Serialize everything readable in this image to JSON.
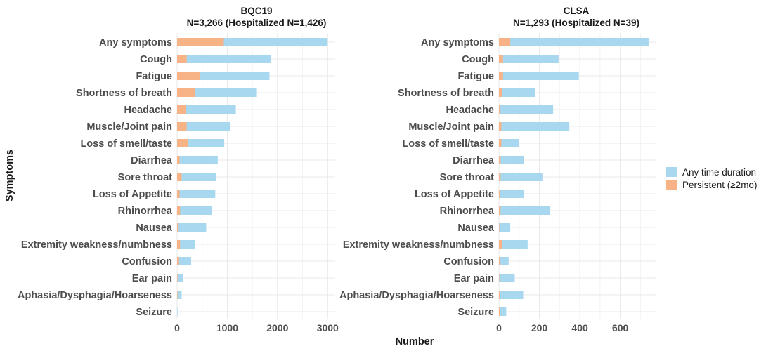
{
  "chart_data": {
    "type": "bar",
    "orientation": "horizontal",
    "stacking": "overlay",
    "ylabel": "Symptoms",
    "xlabel": "Number",
    "categories": [
      "Any symptoms",
      "Cough",
      "Fatigue",
      "Shortness of breath",
      "Headache",
      "Muscle/Joint pain",
      "Loss of smell/taste",
      "Diarrhea",
      "Sore throat",
      "Loss of Appetite",
      "Rhinorrhea",
      "Nausea",
      "Extremity weakness/numbness",
      "Confusion",
      "Ear pain",
      "Aphasia/Dysphagia/Hoarseness",
      "Seizure"
    ],
    "legend": {
      "position": "right",
      "entries": [
        {
          "name": "Any time duration",
          "color": "#a8d8ef"
        },
        {
          "name": "Persistent (≥2mo)",
          "color": "#f7b385"
        }
      ]
    },
    "panels": [
      {
        "title_line1": "BQC19",
        "title_line2": "N=3,266 (Hospitalized N=1,426)",
        "xlim": [
          0,
          3150
        ],
        "xticks": [
          0,
          1000,
          2000,
          3000
        ],
        "series": [
          {
            "name": "Any time duration",
            "values": [
              3000,
              1870,
              1840,
              1590,
              1170,
              1060,
              940,
              810,
              780,
              760,
              690,
              580,
              360,
              280,
              120,
              90,
              10
            ]
          },
          {
            "name": "Persistent (≥2mo)",
            "values": [
              930,
              190,
              460,
              350,
              180,
              190,
              220,
              50,
              90,
              50,
              60,
              30,
              60,
              40,
              10,
              10,
              0
            ]
          }
        ]
      },
      {
        "title_line1": "CLSA",
        "title_line2": "N=1,293 (Hospitalized N=39)",
        "xlim": [
          0,
          775
        ],
        "xticks": [
          0,
          200,
          400,
          600
        ],
        "series": [
          {
            "name": "Any time duration",
            "values": [
              740,
              295,
              395,
              180,
              268,
              348,
              100,
              124,
              215,
              124,
              254,
              56,
              142,
              48,
              78,
              120,
              36
            ]
          },
          {
            "name": "Persistent (≥2mo)",
            "values": [
              56,
              20,
              20,
              16,
              4,
              12,
              12,
              8,
              8,
              6,
              8,
              2,
              16,
              6,
              2,
              4,
              4
            ]
          }
        ]
      }
    ]
  }
}
